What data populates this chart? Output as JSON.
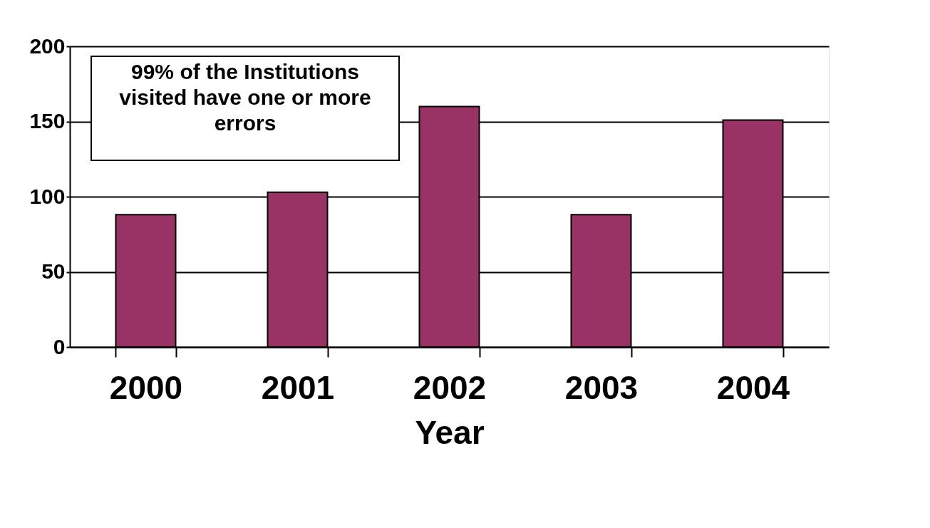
{
  "chart_data": {
    "type": "bar",
    "xlabel": "Year",
    "categories": [
      "2000",
      "2001",
      "2002",
      "2003",
      "2004"
    ],
    "values": [
      88,
      103,
      160,
      88,
      151
    ],
    "color": "#993366",
    "ylim": [
      0,
      200
    ],
    "yticks": [
      0,
      50,
      100,
      150,
      200
    ],
    "grid": "y",
    "annotations": [
      "99% of the Institutions visited have one or more errors"
    ]
  }
}
